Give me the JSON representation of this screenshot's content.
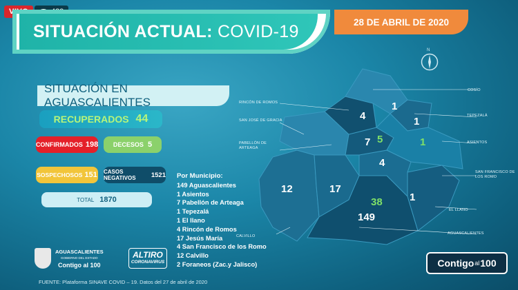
{
  "stream": {
    "live_label": "VIVO",
    "viewers": "489",
    "icons": {
      "viewers": "eye-icon"
    }
  },
  "header": {
    "title_bold": "SITUACIÓN ACTUAL:",
    "title_light": "COVID-19",
    "date": "28 DE ABRIL DE 2020"
  },
  "situation": {
    "heading": "SITUACIÓN EN AGUASCALIENTES",
    "recuperados_label": "RECUPERADOS",
    "recuperados_value": "44",
    "confirmados_label": "CONFIRMADOS",
    "confirmados_value": "198",
    "decesos_label": "DECESOS",
    "decesos_value": "5",
    "sospechosos_label": "SOSPECHOSOS",
    "sospechosos_value": "151",
    "negativos_label": "CASOS NEGATIVOS",
    "negativos_value": "1521",
    "total_label": "TOTAL",
    "total_value": "1870"
  },
  "municipios": {
    "heading": "Por Municipio:",
    "items": [
      "149 Aguascalientes",
      "1   Asientos",
      "7   Pabellón de Arteaga",
      "1   Tepezalá",
      "1   El llano",
      "4   Rincón de Romos",
      "17 Jesús María",
      "4   San Francisco de los Romo",
      "12   Calvillo",
      "2  Foraneos (Zac.y Jalisco)"
    ]
  },
  "map": {
    "labels": {
      "cosio": "COSÍO",
      "rincon": "RINCÓN DE ROMOS",
      "tepezala": "TEPEZALÁ",
      "sanjose": "SAN JOSÉ DE GRACIA",
      "asientos": "ASIENTOS",
      "pabellon": "PABELLÓN DE ARTEAGA",
      "sanfrancisco": "SAN FRANCISCO DE LOS ROMO",
      "elllano": "EL LLANO",
      "calvillo": "CALVILLO",
      "aguascalientes": "AGUASCALIENTES"
    },
    "numbers": {
      "cosio": "1",
      "tepezala": "1",
      "rincon": "4",
      "pabellon": "7",
      "pabellon_rec": "5",
      "asientos": "1",
      "sanfrancisco": "4",
      "calvillo": "12",
      "jesusmaria": "17",
      "elllano": "1",
      "ags_rec": "38",
      "aguascalientes": "149"
    },
    "icons": {
      "compass": "compass-icon"
    }
  },
  "footer": {
    "gov_title": "AGUASCALIENTES",
    "gov_sub": "GOBIERNO DEL ESTADO",
    "gov_contigo": "Contigo al 100",
    "altiro": "ALTIRO",
    "altiro_sub": "CORONAVIRUS",
    "contigo_a": "Contigo",
    "contigo_al": "al",
    "contigo_b": "100",
    "fuente": "FUENTE: Plataforma SINAVE COVID – 19. Datos del 27 de abril de 2020"
  },
  "colors": {
    "background": "#1b86a8",
    "title_banner": "#2fc6b9",
    "date_banner": "#f08a3c",
    "recuperados": "#b6f57a",
    "confirmados": "#e42029",
    "decesos": "#8bd16b",
    "sospechosos": "#f2c53a",
    "negativos": "#0f4d69"
  }
}
